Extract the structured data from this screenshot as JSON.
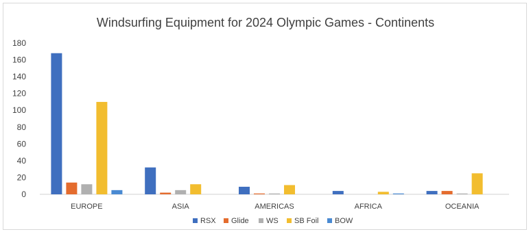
{
  "chart_data": {
    "type": "bar",
    "title": "Windsurfing  Equipment for 2024 Olympic Games - Continents",
    "categories": [
      "EUROPE",
      "ASIA",
      "AMERICAS",
      "AFRICA",
      "OCEANIA"
    ],
    "series": [
      {
        "name": "RSX",
        "color": "#3f6fbf",
        "values": [
          168,
          32,
          9,
          4,
          4
        ]
      },
      {
        "name": "Glide",
        "color": "#e46c2e",
        "values": [
          14,
          2,
          1,
          0,
          4
        ]
      },
      {
        "name": "WS",
        "color": "#b0b0b0",
        "values": [
          12,
          5,
          1,
          0,
          1
        ]
      },
      {
        "name": "SB Foil",
        "color": "#f2bd2f",
        "values": [
          110,
          12,
          11,
          3,
          25
        ]
      },
      {
        "name": "BOW",
        "color": "#4a8ad2",
        "values": [
          5,
          0,
          0,
          1,
          0
        ]
      }
    ],
    "yticks": [
      "0",
      "20",
      "40",
      "60",
      "80",
      "100",
      "120",
      "140",
      "160",
      "180"
    ],
    "ylim": [
      0,
      180
    ],
    "grid": false,
    "legend_position": "bottom"
  }
}
